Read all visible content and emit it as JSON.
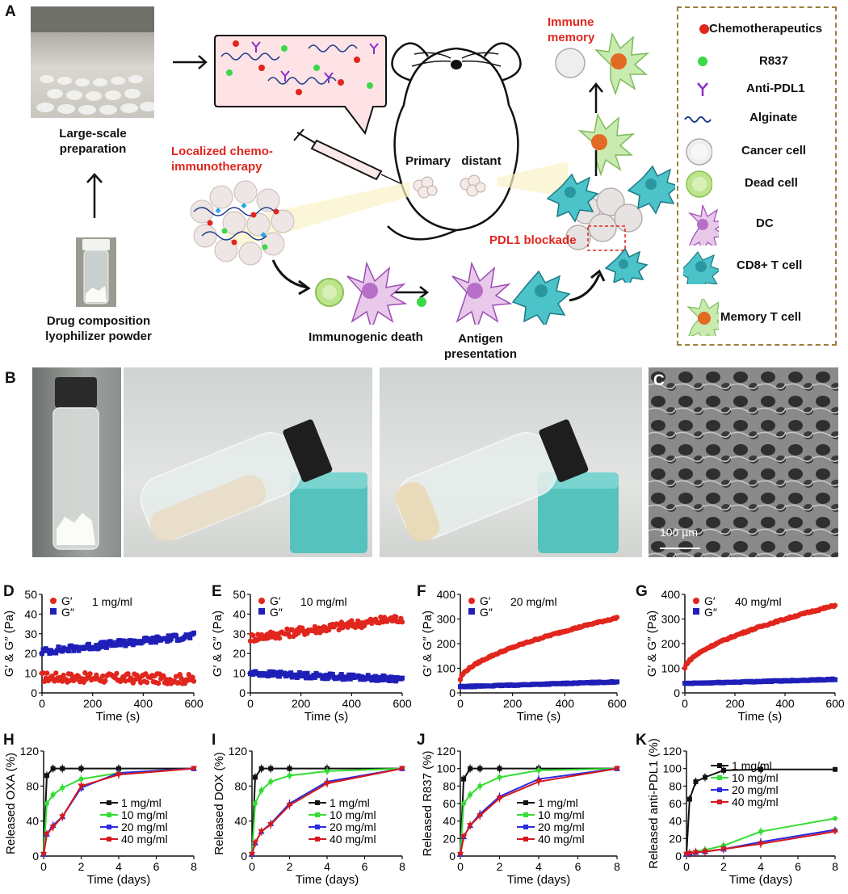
{
  "panel_labels": [
    "A",
    "B",
    "C",
    "D",
    "E",
    "F",
    "G",
    "H",
    "I",
    "J",
    "K"
  ],
  "panelA": {
    "large_scale": "Large-scale preparation",
    "drug_comp": "Drug composition lyophilizer powder",
    "localized": "Localized chemo-immunotherapy",
    "primary": "Primary",
    "distant": "distant",
    "pdl1_blockade": "PDL1 blockade",
    "immunogenic": "Immunogenic death",
    "antigen": "Antigen presentation",
    "immune_memory": "Immune memory",
    "legend": [
      {
        "label": "Chemotherapeutics",
        "icon": "red-dot-icon"
      },
      {
        "label": "R837",
        "icon": "green-dot-icon"
      },
      {
        "label": "Anti-PDL1",
        "icon": "antibody-icon"
      },
      {
        "label": "Alginate",
        "icon": "wave-icon"
      },
      {
        "label": "Cancer cell",
        "icon": "cancer-cell-icon"
      },
      {
        "label": "Dead cell",
        "icon": "dead-cell-icon"
      },
      {
        "label": "DC",
        "icon": "dc-icon"
      },
      {
        "label": "CD8+ T cell",
        "icon": "t-cell-icon"
      },
      {
        "label": "Memory T cell",
        "icon": "memory-cell-icon"
      }
    ]
  },
  "panelC": {
    "scale_bar": "100 µm"
  },
  "colors": {
    "red": "#e0261d",
    "blue": "#1f1fb8",
    "black": "#111111",
    "green": "#33dd33",
    "blue2": "#2a2ae0",
    "red2": "#d4181e"
  },
  "chart_data": [
    {
      "panel": "D",
      "type": "scatter",
      "legend_text": "1 mg/ml",
      "xlabel": "Time (s)",
      "ylabel": "G′ & G″ (Pa)",
      "xlim": [
        0,
        600
      ],
      "ylim": [
        0,
        50
      ],
      "xticks": [
        0,
        200,
        400,
        600
      ],
      "yticks": [
        0,
        10,
        20,
        30,
        40,
        50
      ],
      "series": [
        {
          "name": "G′",
          "start": 8,
          "end": 7,
          "noise": 2.5
        },
        {
          "name": "G″",
          "start": 21,
          "end": 29,
          "noise": 1.6
        }
      ]
    },
    {
      "panel": "E",
      "type": "scatter",
      "legend_text": "10 mg/ml",
      "xlabel": "Time (s)",
      "ylabel": "G′ & G″ (Pa)",
      "xlim": [
        0,
        600
      ],
      "ylim": [
        0,
        50
      ],
      "xticks": [
        0,
        200,
        400,
        600
      ],
      "yticks": [
        0,
        10,
        20,
        30,
        40,
        50
      ],
      "series": [
        {
          "name": "G′",
          "start": 28,
          "end": 38,
          "noise": 2.2
        },
        {
          "name": "G″",
          "start": 10,
          "end": 7,
          "noise": 1.3
        }
      ]
    },
    {
      "panel": "F",
      "type": "scatter",
      "legend_text": "20 mg/ml",
      "xlabel": "Time (s)",
      "ylabel": "G′ & G″ (Pa)",
      "xlim": [
        0,
        600
      ],
      "ylim": [
        0,
        400
      ],
      "xticks": [
        0,
        200,
        400,
        600
      ],
      "yticks": [
        0,
        100,
        200,
        300,
        400
      ],
      "series": [
        {
          "name": "G′",
          "start": 55,
          "end": 305,
          "noise": 3,
          "curve": true
        },
        {
          "name": "G″",
          "start": 25,
          "end": 45,
          "noise": 2
        }
      ]
    },
    {
      "panel": "G",
      "type": "scatter",
      "legend_text": "40 mg/ml",
      "xlabel": "Time (s)",
      "ylabel": "G′ & G″ (Pa)",
      "xlim": [
        0,
        600
      ],
      "ylim": [
        0,
        400
      ],
      "xticks": [
        0,
        200,
        400,
        600
      ],
      "yticks": [
        0,
        100,
        200,
        300,
        400
      ],
      "series": [
        {
          "name": "G′",
          "start": 100,
          "end": 355,
          "noise": 3,
          "curve": true
        },
        {
          "name": "G″",
          "start": 38,
          "end": 55,
          "noise": 2
        }
      ]
    },
    {
      "panel": "H",
      "type": "line",
      "xlabel": "Time (days)",
      "ylabel": "Released OXA (%)",
      "xlim": [
        0,
        8
      ],
      "ylim": [
        0,
        120
      ],
      "xticks": [
        0,
        2,
        4,
        6,
        8
      ],
      "yticks": [
        0,
        40,
        80,
        120
      ],
      "x": [
        0,
        0.17,
        0.5,
        1,
        2,
        4,
        8
      ],
      "series": [
        {
          "name": "1 mg/ml",
          "values": [
            2,
            92,
            100,
            100,
            100,
            100,
            100
          ]
        },
        {
          "name": "10 mg/ml",
          "values": [
            2,
            60,
            70,
            78,
            88,
            95,
            100
          ]
        },
        {
          "name": "20 mg/ml",
          "values": [
            2,
            25,
            35,
            45,
            78,
            95,
            100
          ]
        },
        {
          "name": "40 mg/ml",
          "values": [
            2,
            25,
            33,
            45,
            80,
            93,
            100
          ]
        }
      ]
    },
    {
      "panel": "I",
      "type": "line",
      "xlabel": "Time (days)",
      "ylabel": "Released DOX (%)",
      "xlim": [
        0,
        8
      ],
      "ylim": [
        0,
        120
      ],
      "xticks": [
        0,
        2,
        4,
        6,
        8
      ],
      "yticks": [
        0,
        40,
        80,
        120
      ],
      "x": [
        0,
        0.17,
        0.5,
        1,
        2,
        4,
        8
      ],
      "series": [
        {
          "name": "1 mg/ml",
          "values": [
            2,
            90,
            100,
            100,
            100,
            100,
            100
          ]
        },
        {
          "name": "10 mg/ml",
          "values": [
            2,
            60,
            75,
            85,
            92,
            97,
            100
          ]
        },
        {
          "name": "20 mg/ml",
          "values": [
            2,
            15,
            28,
            37,
            60,
            85,
            100
          ]
        },
        {
          "name": "40 mg/ml",
          "values": [
            2,
            15,
            28,
            36,
            58,
            83,
            100
          ]
        }
      ]
    },
    {
      "panel": "J",
      "type": "line",
      "xlabel": "Time (days)",
      "ylabel": "Released R837 (%)",
      "xlim": [
        0,
        8
      ],
      "ylim": [
        0,
        120
      ],
      "xticks": [
        0,
        2,
        4,
        6,
        8
      ],
      "yticks": [
        0,
        20,
        40,
        60,
        80,
        100,
        120
      ],
      "x": [
        0,
        0.17,
        0.5,
        1,
        2,
        4,
        8
      ],
      "series": [
        {
          "name": "1 mg/ml",
          "values": [
            2,
            88,
            100,
            100,
            100,
            100,
            100
          ]
        },
        {
          "name": "10 mg/ml",
          "values": [
            2,
            60,
            70,
            80,
            90,
            98,
            100
          ]
        },
        {
          "name": "20 mg/ml",
          "values": [
            2,
            22,
            35,
            48,
            68,
            88,
            100
          ]
        },
        {
          "name": "40 mg/ml",
          "values": [
            2,
            22,
            35,
            46,
            66,
            85,
            100
          ]
        }
      ]
    },
    {
      "panel": "K",
      "type": "line",
      "xlabel": "Time (days)",
      "ylabel": "Released anti-PDL1 (%)",
      "xlim": [
        0,
        8
      ],
      "ylim": [
        0,
        120
      ],
      "xticks": [
        0,
        2,
        4,
        6,
        8
      ],
      "yticks": [
        0,
        20,
        40,
        60,
        80,
        100,
        120
      ],
      "x": [
        0,
        0.17,
        0.5,
        1,
        2,
        4,
        8
      ],
      "series": [
        {
          "name": "1 mg/ml",
          "values": [
            2,
            65,
            85,
            90,
            98,
            99,
            99
          ]
        },
        {
          "name": "10 mg/ml",
          "values": [
            2,
            3,
            5,
            7,
            12,
            28,
            43
          ]
        },
        {
          "name": "20 mg/ml",
          "values": [
            2,
            3,
            4,
            5,
            8,
            16,
            30
          ]
        },
        {
          "name": "40 mg/ml",
          "values": [
            2,
            3,
            4,
            5,
            8,
            14,
            28
          ]
        }
      ]
    }
  ]
}
